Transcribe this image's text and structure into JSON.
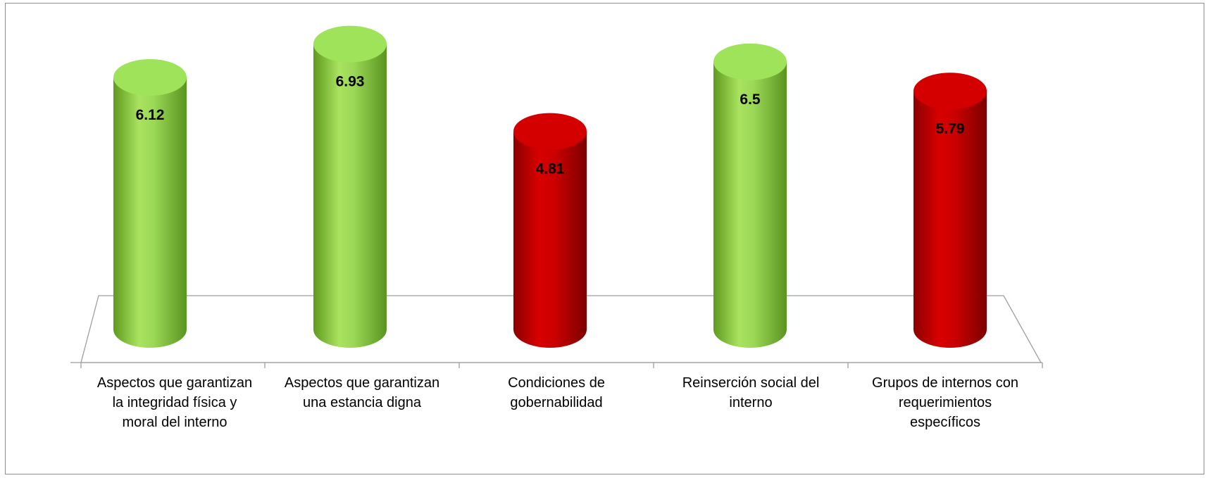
{
  "chart_data": {
    "type": "bar",
    "style": "3d-cylinder",
    "categories": [
      "Aspectos que garantizan la integridad física y moral del interno",
      "Aspectos que garantizan una estancia digna",
      "Condiciones de gobernabilidad",
      "Reinserción social del interno",
      "Grupos de internos con requerimientos específicos"
    ],
    "category_lines": [
      [
        "Aspectos que garantizan",
        "la integridad física y",
        "moral del interno"
      ],
      [
        "Aspectos que garantizan",
        "una estancia digna"
      ],
      [
        "Condiciones de",
        "gobernabilidad"
      ],
      [
        "Reinserción social del",
        "interno"
      ],
      [
        "Grupos de internos con",
        "requerimientos",
        "específicos"
      ]
    ],
    "values": [
      6.12,
      6.93,
      4.81,
      6.5,
      5.79
    ],
    "value_labels": [
      "6.12",
      "6.93",
      "4.81",
      "6.5",
      "5.79"
    ],
    "bar_colors": [
      "#92d050",
      "#92d050",
      "#c00000",
      "#92d050",
      "#c00000"
    ],
    "title": "",
    "xlabel": "",
    "ylabel": "",
    "ylim": [
      0,
      8
    ],
    "grid": false,
    "legend": "none"
  }
}
